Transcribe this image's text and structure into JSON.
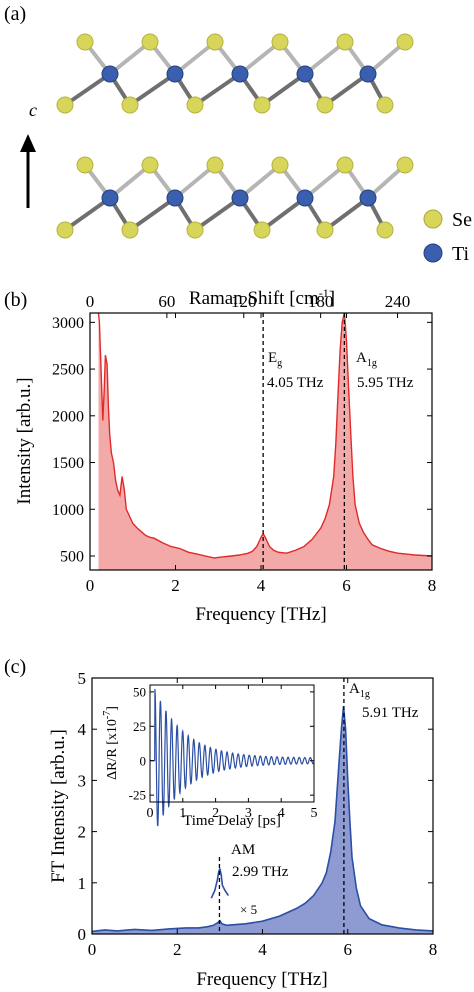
{
  "panel_a": {
    "label": "(a)",
    "axis_label": "c",
    "legend": [
      {
        "label": "Se",
        "color": "#d8d65a"
      },
      {
        "label": "Ti",
        "color": "#3a5fae"
      }
    ]
  },
  "colors": {
    "raman": "#e02a2a",
    "raman_fill": "#f4a9a9",
    "ft": "#2b4fa5",
    "ft_fill": "#8e9bd3"
  },
  "chart_data": [
    {
      "type": "area",
      "panel": "(b)",
      "xlabel": "Frequency [THz]",
      "ylabel": "Intensity [arb.u.]",
      "top_axis_label": "Raman Shift [cm",
      "top_axis_sup": "-1",
      "top_axis_close": "]",
      "xlim": [
        0,
        8
      ],
      "ylim": [
        350,
        3100
      ],
      "x_ticks": [
        0,
        2,
        4,
        6,
        8
      ],
      "y_ticks": [
        500,
        1000,
        1500,
        2000,
        2500,
        3000
      ],
      "top_xlim": [
        0,
        266.9
      ],
      "top_ticks": [
        0,
        60,
        120,
        180,
        240
      ],
      "series": [
        {
          "x": [
            0.2,
            0.22,
            0.25,
            0.28,
            0.3,
            0.33,
            0.36,
            0.4,
            0.43,
            0.46,
            0.5,
            0.55,
            0.6,
            0.65,
            0.7,
            0.75,
            0.8,
            0.85,
            0.9,
            0.95,
            1.0,
            1.1,
            1.2,
            1.3,
            1.4,
            1.5,
            1.7,
            1.9,
            2.1,
            2.3,
            2.5,
            2.7,
            2.9,
            3.1,
            3.3,
            3.5,
            3.7,
            3.8,
            3.9,
            3.95,
            4.0,
            4.05,
            4.1,
            4.15,
            4.2,
            4.3,
            4.4,
            4.6,
            4.8,
            5.0,
            5.2,
            5.4,
            5.5,
            5.6,
            5.7,
            5.75,
            5.8,
            5.85,
            5.9,
            5.95,
            6.0,
            6.05,
            6.1,
            6.15,
            6.2,
            6.3,
            6.4,
            6.5,
            6.6,
            6.8,
            7.0,
            7.2,
            7.4,
            7.6,
            7.8,
            8.0
          ],
          "y": [
            3100,
            3000,
            2600,
            2200,
            1950,
            2250,
            2650,
            2550,
            2100,
            1800,
            1600,
            1500,
            1300,
            1200,
            1150,
            1350,
            1220,
            1000,
            950,
            900,
            850,
            800,
            760,
            720,
            700,
            690,
            640,
            600,
            580,
            540,
            520,
            500,
            480,
            490,
            500,
            510,
            530,
            550,
            600,
            650,
            700,
            740,
            700,
            650,
            600,
            560,
            540,
            530,
            560,
            600,
            680,
            800,
            900,
            1050,
            1350,
            1700,
            2200,
            2700,
            3000,
            3100,
            2800,
            2300,
            1800,
            1350,
            1050,
            850,
            750,
            680,
            620,
            580,
            550,
            530,
            520,
            510,
            505,
            500
          ]
        }
      ],
      "annotations": [
        {
          "main": "E",
          "sub": "g",
          "value": "4.05 THz",
          "x": 4.05
        },
        {
          "main": "A",
          "sub": "1g",
          "value": "5.95 THz",
          "x": 5.95
        }
      ]
    },
    {
      "type": "area",
      "panel": "(c)",
      "xlabel": "Frequency [THz]",
      "ylabel": "FT Intensity [arb.u.]",
      "xlim": [
        0,
        8
      ],
      "ylim": [
        0,
        5
      ],
      "x_ticks": [
        0,
        2,
        4,
        6,
        8
      ],
      "y_ticks": [
        0,
        1,
        2,
        3,
        4,
        5
      ],
      "series": [
        {
          "x": [
            0,
            0.3,
            0.6,
            1.0,
            1.4,
            1.8,
            2.2,
            2.5,
            2.7,
            2.85,
            2.95,
            3.0,
            3.05,
            3.15,
            3.3,
            3.6,
            4.0,
            4.4,
            4.8,
            5.0,
            5.2,
            5.4,
            5.5,
            5.6,
            5.7,
            5.75,
            5.8,
            5.85,
            5.9,
            5.95,
            6.0,
            6.05,
            6.1,
            6.2,
            6.3,
            6.5,
            6.8,
            7.2,
            7.6,
            8.0
          ],
          "y": [
            0.05,
            0.08,
            0.06,
            0.09,
            0.07,
            0.1,
            0.12,
            0.12,
            0.14,
            0.17,
            0.22,
            0.26,
            0.2,
            0.17,
            0.18,
            0.2,
            0.25,
            0.35,
            0.5,
            0.6,
            0.75,
            1.0,
            1.2,
            1.6,
            2.2,
            2.8,
            3.4,
            4.0,
            4.45,
            4.0,
            3.0,
            2.2,
            1.5,
            0.9,
            0.55,
            0.3,
            0.18,
            0.12,
            0.08,
            0.06
          ]
        },
        {
          "name": "× 5",
          "x": [
            2.8,
            2.88,
            2.94,
            2.97,
            3.0,
            3.03,
            3.06,
            3.12,
            3.2
          ],
          "y": [
            0.7,
            0.85,
            1.05,
            1.2,
            1.28,
            1.15,
            0.95,
            0.85,
            0.75
          ]
        }
      ],
      "annotations": [
        {
          "main": "A",
          "sub": "1g",
          "value": "5.91 THz",
          "x": 5.91
        },
        {
          "main": "AM",
          "sub": "",
          "value": "2.99 THz",
          "x": 2.99
        }
      ],
      "scale_label": "× 5",
      "inset": {
        "type": "line",
        "xlabel": "Time Delay [ps]",
        "ylabel": "ΔR/R [x10",
        "ylabel_sup": "-7",
        "ylabel_close": "]",
        "xlim": [
          0,
          5
        ],
        "ylim": [
          -30,
          55
        ],
        "x_ticks": [
          0,
          1,
          2,
          3,
          4,
          5
        ],
        "y_ticks": [
          -25,
          0,
          25,
          50
        ],
        "oscillation": {
          "start_ps": 0.15,
          "amplitude": 50,
          "frequency_thz": 5.91,
          "decay_ps": 0.9,
          "floor": 2
        }
      }
    }
  ]
}
